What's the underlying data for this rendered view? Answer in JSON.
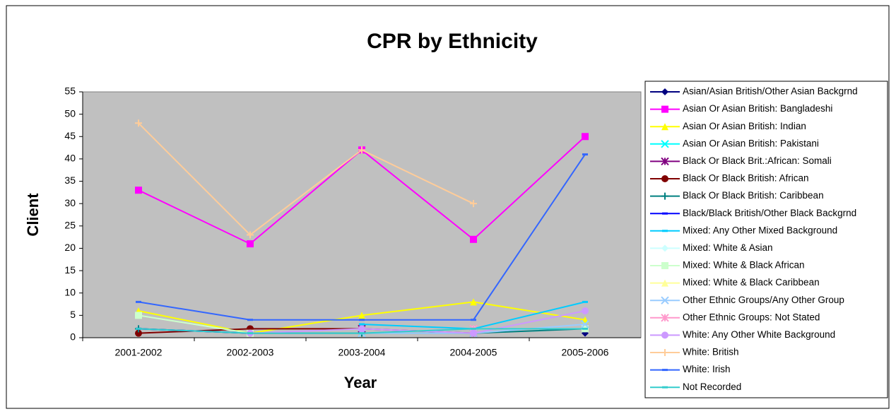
{
  "chart_data": {
    "type": "line",
    "title": "CPR by Ethnicity",
    "x_label": "Year",
    "y_label": "Client",
    "categories": [
      "2001-2002",
      "2002-2003",
      "2003-2004",
      "2004-2005",
      "2005-2006"
    ],
    "ylim": [
      0,
      55
    ],
    "yticks": [
      0,
      5,
      10,
      15,
      20,
      25,
      30,
      35,
      40,
      45,
      50,
      55
    ],
    "grid": false,
    "legend": "right",
    "series": [
      {
        "name": "Asian/Asian British/Other Asian Backgrnd",
        "color": "#000080",
        "marker": "diamond",
        "values": [
          null,
          null,
          null,
          null,
          1
        ]
      },
      {
        "name": "Asian Or Asian British: Bangladeshi",
        "color": "#FF00FF",
        "marker": "square",
        "values": [
          33,
          21,
          42,
          22,
          45
        ]
      },
      {
        "name": "Asian Or Asian British: Indian",
        "color": "#FFFF00",
        "marker": "triangle",
        "values": [
          6,
          1,
          5,
          8,
          4
        ]
      },
      {
        "name": "Asian Or Asian British: Pakistani",
        "color": "#00FFFF",
        "marker": "x",
        "values": [
          null,
          null,
          1,
          null,
          3
        ]
      },
      {
        "name": "Black Or Black Brit.:African: Somali",
        "color": "#800080",
        "marker": "star",
        "values": [
          null,
          null,
          2,
          1,
          null
        ]
      },
      {
        "name": "Black Or Black British: African",
        "color": "#800000",
        "marker": "circle",
        "values": [
          1,
          2,
          2,
          null,
          null
        ]
      },
      {
        "name": "Black Or Black British: Caribbean",
        "color": "#008080",
        "marker": "plus",
        "values": [
          2,
          1,
          1,
          1,
          2
        ]
      },
      {
        "name": "Black/Black British/Other Black Backgrnd",
        "color": "#0000FF",
        "marker": "dash",
        "values": [
          2,
          1,
          null,
          null,
          null
        ]
      },
      {
        "name": "Mixed: Any Other Mixed Background",
        "color": "#00CCFF",
        "marker": "dash",
        "values": [
          null,
          null,
          3,
          2,
          8
        ]
      },
      {
        "name": "Mixed: White & Asian",
        "color": "#CCFFFF",
        "marker": "diamond",
        "values": [
          null,
          1,
          null,
          2,
          2
        ]
      },
      {
        "name": "Mixed: White & Black African",
        "color": "#CCFFCC",
        "marker": "square",
        "values": [
          5,
          1,
          null,
          null,
          2
        ]
      },
      {
        "name": "Mixed: White & Black Caribbean",
        "color": "#FFFF99",
        "marker": "triangle",
        "values": [
          null,
          null,
          null,
          2,
          null
        ]
      },
      {
        "name": "Other Ethnic Groups/Any Other Group",
        "color": "#99CCFF",
        "marker": "x",
        "values": [
          null,
          null,
          1,
          1,
          3
        ]
      },
      {
        "name": "Other Ethnic Groups: Not Stated",
        "color": "#FF99CC",
        "marker": "star",
        "values": [
          null,
          null,
          null,
          2,
          null
        ]
      },
      {
        "name": "White: Any Other White Background",
        "color": "#CC99FF",
        "marker": "circle",
        "values": [
          null,
          1,
          2,
          1,
          6
        ]
      },
      {
        "name": "White: British",
        "color": "#FFCC99",
        "marker": "plus",
        "values": [
          48,
          23,
          42,
          30,
          null
        ]
      },
      {
        "name": "White: Irish",
        "color": "#3366FF",
        "marker": "dash",
        "values": [
          8,
          4,
          4,
          4,
          41
        ]
      },
      {
        "name": "Not Recorded",
        "color": "#33CCCC",
        "marker": "dash",
        "values": [
          2,
          1,
          1,
          2,
          2
        ]
      }
    ]
  }
}
